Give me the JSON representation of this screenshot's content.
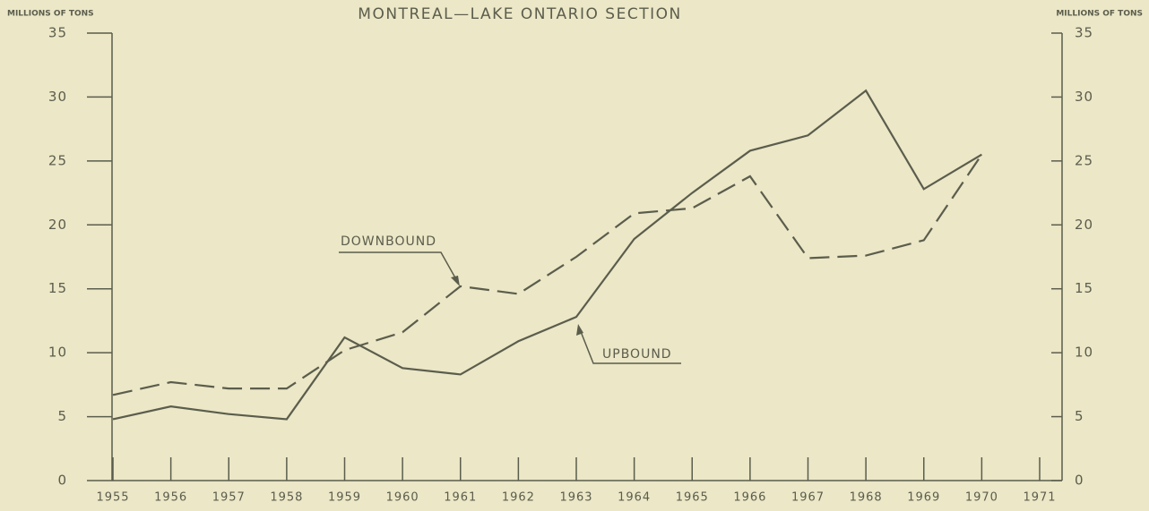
{
  "chart_data": {
    "type": "line",
    "title": "MONTREAL—LAKE ONTARIO SECTION",
    "y_label": "MILLIONS OF TONS",
    "y2_label": "MILLIONS OF TONS",
    "x": [
      1955,
      1956,
      1957,
      1958,
      1959,
      1960,
      1961,
      1962,
      1963,
      1964,
      1965,
      1966,
      1967,
      1968,
      1969,
      1970,
      1971
    ],
    "xlim": [
      1955,
      1971
    ],
    "xticks": [
      1955,
      1956,
      1957,
      1958,
      1959,
      1960,
      1961,
      1962,
      1963,
      1964,
      1965,
      1966,
      1967,
      1968,
      1969,
      1970,
      1971
    ],
    "ylim": [
      0,
      35
    ],
    "yticks": [
      0,
      5,
      10,
      15,
      20,
      25,
      30,
      35
    ],
    "y2lim": [
      0,
      35
    ],
    "y2ticks": [
      0,
      5,
      10,
      15,
      20,
      25,
      30,
      35
    ],
    "series": [
      {
        "name": "UPBOUND",
        "color": "#5b5d4c",
        "dash": false,
        "values": [
          4.8,
          5.8,
          5.2,
          4.8,
          11.2,
          8.8,
          8.3,
          10.9,
          12.8,
          18.9,
          22.5,
          25.8,
          27.0,
          30.5,
          22.8,
          25.5,
          null
        ]
      },
      {
        "name": "DOWNBOUND",
        "color": "#5b5d4c",
        "dash": true,
        "values": [
          6.7,
          7.7,
          7.2,
          7.2,
          10.2,
          11.6,
          15.2,
          14.6,
          17.5,
          20.9,
          21.3,
          23.8,
          17.4,
          17.6,
          18.8,
          25.5,
          null
        ]
      }
    ]
  }
}
